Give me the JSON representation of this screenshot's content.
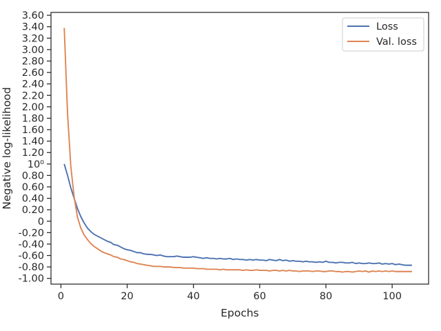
{
  "chart_data": {
    "type": "line",
    "title": "",
    "xlabel": "Epochs",
    "ylabel": "Negative log-likelihood",
    "xlim": [
      -3,
      111
    ],
    "ylim_logspace": [
      -1.1,
      3.65
    ],
    "grid": false,
    "legend_position": "top-right",
    "x_ticks": [
      0,
      20,
      40,
      60,
      80,
      100
    ],
    "x_tick_labels": [
      "0",
      "20",
      "40",
      "60",
      "80",
      "100"
    ],
    "y_ticks": [
      -1.0,
      -0.8,
      -0.6,
      -0.4,
      -0.2,
      0,
      0.2,
      0.4,
      0.6,
      0.8,
      1.0,
      1.2,
      1.4,
      1.6,
      1.8,
      2.0,
      2.2,
      2.4,
      2.6,
      2.8,
      3.0,
      3.2,
      3.4,
      3.6
    ],
    "y_tick_labels": [
      "-1.00",
      "-0.80",
      "-0.60",
      "-0.40",
      "-0.20",
      "0",
      "0.20",
      "0.40",
      "0.60",
      "0.80",
      "10⁰",
      "1.20",
      "1.40",
      "1.60",
      "1.80",
      "2.00",
      "2.20",
      "2.40",
      "2.60",
      "2.80",
      "3.00",
      "3.20",
      "3.40",
      "3.60"
    ],
    "series": [
      {
        "name": "Loss",
        "color": "#4c72b0",
        "x": [
          1,
          2,
          3,
          4,
          5,
          6,
          7,
          8,
          9,
          10,
          11,
          12,
          13,
          14,
          15,
          16,
          17,
          18,
          19,
          20,
          21,
          22,
          23,
          24,
          25,
          26,
          27,
          28,
          29,
          30,
          31,
          32,
          33,
          34,
          35,
          36,
          37,
          38,
          39,
          40,
          41,
          42,
          43,
          44,
          45,
          46,
          47,
          48,
          49,
          50,
          51,
          52,
          53,
          54,
          55,
          56,
          57,
          58,
          59,
          60,
          61,
          62,
          63,
          64,
          65,
          66,
          67,
          68,
          69,
          70,
          71,
          72,
          73,
          74,
          75,
          76,
          77,
          78,
          79,
          80,
          81,
          82,
          83,
          84,
          85,
          86,
          87,
          88,
          89,
          90,
          91,
          92,
          93,
          94,
          95,
          96,
          97,
          98,
          99,
          100,
          101,
          102,
          103,
          104,
          105,
          106
        ],
        "y": [
          1.0,
          0.8,
          0.58,
          0.4,
          0.22,
          0.08,
          -0.03,
          -0.12,
          -0.18,
          -0.23,
          -0.26,
          -0.29,
          -0.32,
          -0.35,
          -0.37,
          -0.41,
          -0.42,
          -0.45,
          -0.48,
          -0.5,
          -0.51,
          -0.53,
          -0.55,
          -0.55,
          -0.57,
          -0.58,
          -0.58,
          -0.59,
          -0.6,
          -0.59,
          -0.61,
          -0.62,
          -0.62,
          -0.62,
          -0.61,
          -0.62,
          -0.63,
          -0.63,
          -0.63,
          -0.62,
          -0.63,
          -0.64,
          -0.65,
          -0.64,
          -0.65,
          -0.65,
          -0.66,
          -0.65,
          -0.66,
          -0.66,
          -0.65,
          -0.67,
          -0.66,
          -0.67,
          -0.67,
          -0.68,
          -0.67,
          -0.68,
          -0.67,
          -0.68,
          -0.68,
          -0.69,
          -0.67,
          -0.68,
          -0.69,
          -0.67,
          -0.69,
          -0.68,
          -0.7,
          -0.69,
          -0.7,
          -0.7,
          -0.71,
          -0.7,
          -0.71,
          -0.71,
          -0.72,
          -0.71,
          -0.72,
          -0.7,
          -0.72,
          -0.72,
          -0.73,
          -0.72,
          -0.72,
          -0.73,
          -0.73,
          -0.72,
          -0.74,
          -0.73,
          -0.74,
          -0.74,
          -0.73,
          -0.74,
          -0.74,
          -0.73,
          -0.75,
          -0.74,
          -0.75,
          -0.74,
          -0.76,
          -0.75,
          -0.76,
          -0.77,
          -0.77,
          -0.77
        ]
      },
      {
        "name": "Val. loss",
        "color": "#dd8452",
        "x": [
          1,
          2,
          3,
          4,
          5,
          6,
          7,
          8,
          9,
          10,
          11,
          12,
          13,
          14,
          15,
          16,
          17,
          18,
          19,
          20,
          21,
          22,
          23,
          24,
          25,
          26,
          27,
          28,
          29,
          30,
          31,
          32,
          33,
          34,
          35,
          36,
          37,
          38,
          39,
          40,
          41,
          42,
          43,
          44,
          45,
          46,
          47,
          48,
          49,
          50,
          51,
          52,
          53,
          54,
          55,
          56,
          57,
          58,
          59,
          60,
          61,
          62,
          63,
          64,
          65,
          66,
          67,
          68,
          69,
          70,
          71,
          72,
          73,
          74,
          75,
          76,
          77,
          78,
          79,
          80,
          81,
          82,
          83,
          84,
          85,
          86,
          87,
          88,
          89,
          90,
          91,
          92,
          93,
          94,
          95,
          96,
          97,
          98,
          99,
          100,
          101,
          102,
          103,
          104,
          105,
          106
        ],
        "y": [
          3.38,
          1.88,
          0.95,
          0.42,
          0.07,
          -0.12,
          -0.24,
          -0.32,
          -0.39,
          -0.44,
          -0.48,
          -0.52,
          -0.55,
          -0.57,
          -0.59,
          -0.62,
          -0.63,
          -0.66,
          -0.67,
          -0.69,
          -0.71,
          -0.72,
          -0.74,
          -0.75,
          -0.76,
          -0.77,
          -0.78,
          -0.79,
          -0.79,
          -0.79,
          -0.8,
          -0.8,
          -0.8,
          -0.81,
          -0.81,
          -0.81,
          -0.82,
          -0.82,
          -0.82,
          -0.82,
          -0.83,
          -0.83,
          -0.83,
          -0.84,
          -0.84,
          -0.84,
          -0.84,
          -0.85,
          -0.84,
          -0.85,
          -0.85,
          -0.85,
          -0.85,
          -0.85,
          -0.86,
          -0.85,
          -0.86,
          -0.86,
          -0.85,
          -0.86,
          -0.86,
          -0.86,
          -0.87,
          -0.86,
          -0.86,
          -0.87,
          -0.86,
          -0.87,
          -0.86,
          -0.87,
          -0.87,
          -0.88,
          -0.87,
          -0.87,
          -0.87,
          -0.88,
          -0.87,
          -0.87,
          -0.88,
          -0.88,
          -0.87,
          -0.87,
          -0.88,
          -0.88,
          -0.89,
          -0.88,
          -0.88,
          -0.89,
          -0.88,
          -0.87,
          -0.88,
          -0.87,
          -0.89,
          -0.87,
          -0.88,
          -0.87,
          -0.88,
          -0.87,
          -0.88,
          -0.87,
          -0.88,
          -0.88,
          -0.88,
          -0.88,
          -0.88,
          -0.88
        ]
      }
    ]
  }
}
